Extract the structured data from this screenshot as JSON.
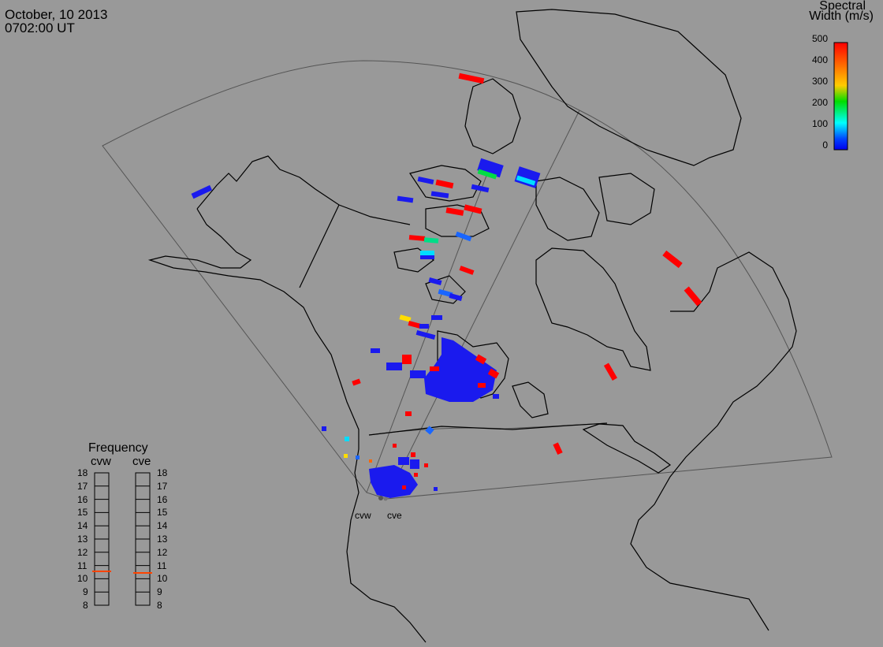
{
  "header": {
    "date": "October, 10 2013",
    "time": "0702:00 UT"
  },
  "colorbar": {
    "title_line1": "Spectral",
    "title_line2": "Width (m/s)",
    "ticks": [
      "500",
      "400",
      "300",
      "200",
      "100",
      "0"
    ],
    "colors": [
      "#ff0000",
      "#ff6600",
      "#ffcc00",
      "#00dd00",
      "#00ffff",
      "#0044ff",
      "#0000ee"
    ]
  },
  "frequency_panel": {
    "title": "Frequency",
    "radar_left": "cvw",
    "radar_right": "cve",
    "levels": [
      "18",
      "17",
      "16",
      "15",
      "14",
      "13",
      "12",
      "11",
      "10",
      "9",
      "8"
    ],
    "marker_color": "#ff4400"
  },
  "radar_labels": {
    "west": "cvw",
    "east": "cve"
  }
}
